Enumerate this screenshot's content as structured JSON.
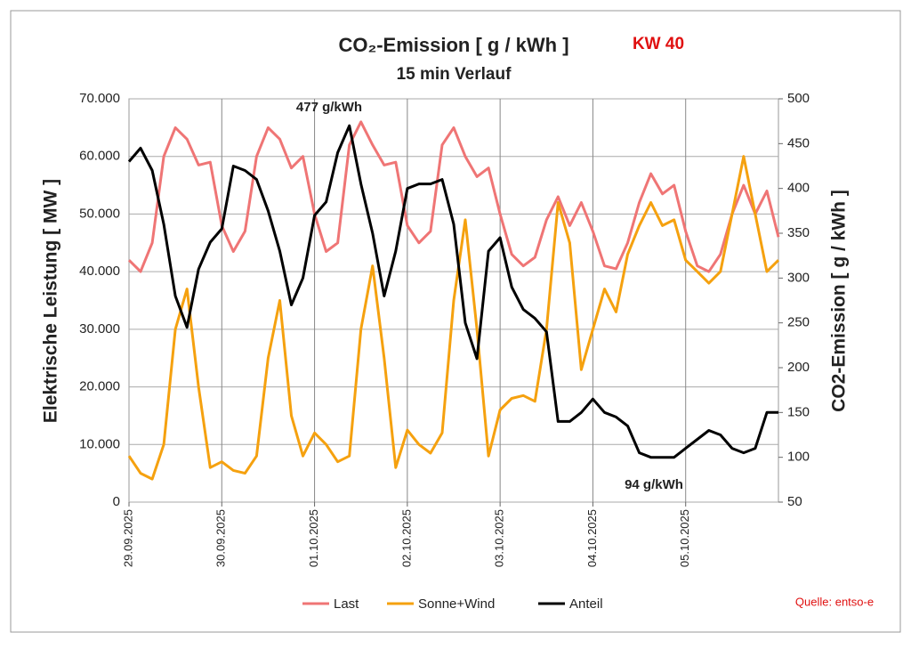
{
  "chart_data": {
    "type": "line",
    "title": "CO₂-Emission [ g / kWh ]",
    "subtitle": "15 min Verlauf",
    "badge": "KW 40",
    "source": "Quelle: entso-e",
    "y_label": "Elektrische Leistung [ MW ]",
    "y2_label": "CO2-Emission [ g / kWh ]",
    "annotations": [
      "477 g/kWh",
      "94 g/kWh"
    ],
    "categories": [
      "29.09.2025",
      null,
      null,
      null,
      null,
      null,
      null,
      null,
      "30.09.2025",
      null,
      null,
      null,
      null,
      null,
      null,
      null,
      "01.10.2025",
      null,
      null,
      null,
      null,
      null,
      null,
      null,
      "02.10.2025",
      null,
      null,
      null,
      null,
      null,
      null,
      null,
      "03.10.2025",
      null,
      null,
      null,
      null,
      null,
      null,
      null,
      "04.10.2025",
      null,
      null,
      null,
      null,
      null,
      null,
      null,
      "05.10.2025",
      null,
      null,
      null,
      null,
      null,
      null,
      null,
      null
    ],
    "ylim": [
      0,
      70000
    ],
    "yticks": [
      0,
      {
        "value": 10000,
        "label": "10.000"
      },
      {
        "value": 20000,
        "label": "20.000"
      },
      {
        "value": 30000,
        "label": "30.000"
      },
      {
        "value": 40000,
        "label": "40.000"
      },
      {
        "value": 50000,
        "label": "50.000"
      },
      {
        "value": 60000,
        "label": "60.000"
      },
      {
        "value": 70000,
        "label": "70.000"
      }
    ],
    "y2lim": [
      50,
      500
    ],
    "y2ticks": [
      50,
      100,
      150,
      200,
      250,
      300,
      350,
      400,
      450,
      500
    ],
    "grid": true,
    "legend": "bottom",
    "series": [
      {
        "name": "Last",
        "color": "#ef7575",
        "values": [
          42000,
          40000,
          45000,
          60000,
          65000,
          63000,
          58500,
          59000,
          48000,
          43500,
          47000,
          60000,
          65000,
          63000,
          58000,
          60000,
          50000,
          43500,
          45000,
          62000,
          66000,
          62000,
          58500,
          59000,
          48000,
          45000,
          47000,
          62000,
          65000,
          60000,
          56500,
          58000,
          50000,
          43000,
          41000,
          42500,
          49000,
          53000,
          48000,
          52000,
          47000,
          41000,
          40500,
          45000,
          52000,
          57000,
          53500,
          55000,
          47000,
          41000,
          40000,
          43000,
          50000,
          55000,
          50000,
          54000,
          46000
        ]
      },
      {
        "name": "Sonne+Wind",
        "color": "#f5a10f",
        "values": [
          8000,
          5000,
          4000,
          10000,
          30000,
          37000,
          20000,
          6000,
          7000,
          5500,
          5000,
          8000,
          25000,
          35000,
          15000,
          8000,
          12000,
          10000,
          7000,
          8000,
          30000,
          41000,
          25000,
          6000,
          12500,
          10000,
          8500,
          12000,
          35000,
          49000,
          30000,
          8000,
          16000,
          18000,
          18500,
          17500,
          30000,
          52000,
          45000,
          23000,
          30000,
          37000,
          33000,
          43000,
          48000,
          52000,
          48000,
          49000,
          42000,
          40000,
          38000,
          40000,
          50000,
          60000,
          50000,
          40000,
          42000
        ]
      },
      {
        "name": "Anteil",
        "color": "#000000",
        "axis": "y2",
        "values": [
          430,
          445,
          420,
          360,
          280,
          245,
          310,
          340,
          355,
          425,
          420,
          410,
          375,
          330,
          270,
          300,
          370,
          385,
          440,
          470,
          405,
          350,
          280,
          330,
          400,
          405,
          405,
          410,
          360,
          250,
          210,
          330,
          345,
          290,
          265,
          255,
          240,
          140,
          140,
          150,
          165,
          150,
          145,
          135,
          105,
          100,
          100,
          100,
          110,
          120,
          130,
          125,
          110,
          105,
          110,
          150,
          150
        ]
      }
    ]
  }
}
